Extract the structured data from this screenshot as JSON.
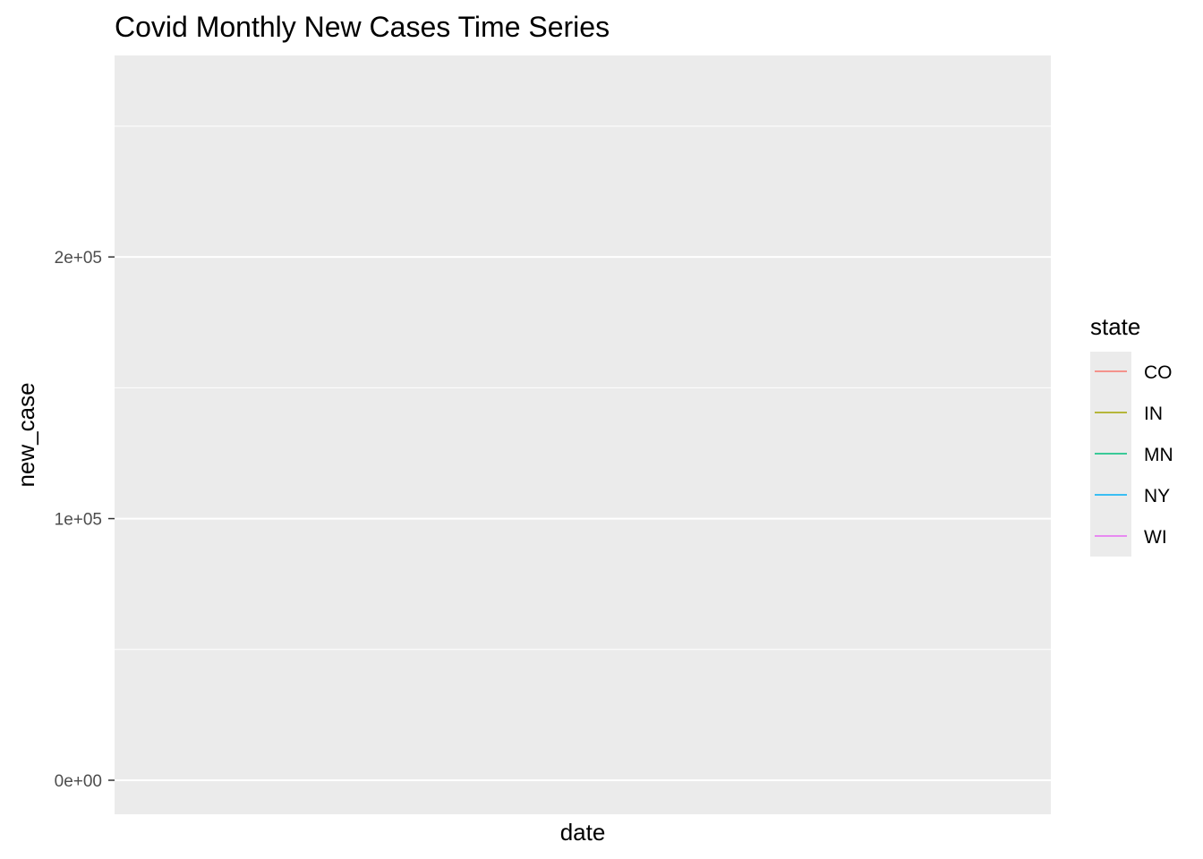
{
  "chart_data": {
    "type": "line",
    "title": "Covid Monthly New Cases Time Series",
    "xlabel": "date",
    "ylabel": "new_case",
    "ylim": [
      -13000,
      277000
    ],
    "y_ticks": [
      {
        "value": 0,
        "label": "0e+00"
      },
      {
        "value": 100000,
        "label": "1e+05"
      },
      {
        "value": 200000,
        "label": "2e+05"
      }
    ],
    "y_minor_ticks": [
      50000,
      150000,
      250000
    ],
    "x_ticks": [],
    "grid": true,
    "legend": {
      "title": "state",
      "position": "right",
      "entries": [
        {
          "name": "CO",
          "color": "#F8766D"
        },
        {
          "name": "IN",
          "color": "#A3A500"
        },
        {
          "name": "MN",
          "color": "#00BF7D"
        },
        {
          "name": "NY",
          "color": "#00B0F6"
        },
        {
          "name": "WI",
          "color": "#E76BF3"
        }
      ]
    },
    "series": [
      {
        "name": "CO",
        "color": "#F8766D",
        "values": []
      },
      {
        "name": "IN",
        "color": "#A3A500",
        "values": []
      },
      {
        "name": "MN",
        "color": "#00BF7D",
        "values": []
      },
      {
        "name": "NY",
        "color": "#00B0F6",
        "values": []
      },
      {
        "name": "WI",
        "color": "#E76BF3",
        "values": []
      }
    ],
    "colors": {
      "panel_background": "#EBEBEB",
      "grid": "#FFFFFF",
      "tick": "#333333"
    }
  }
}
